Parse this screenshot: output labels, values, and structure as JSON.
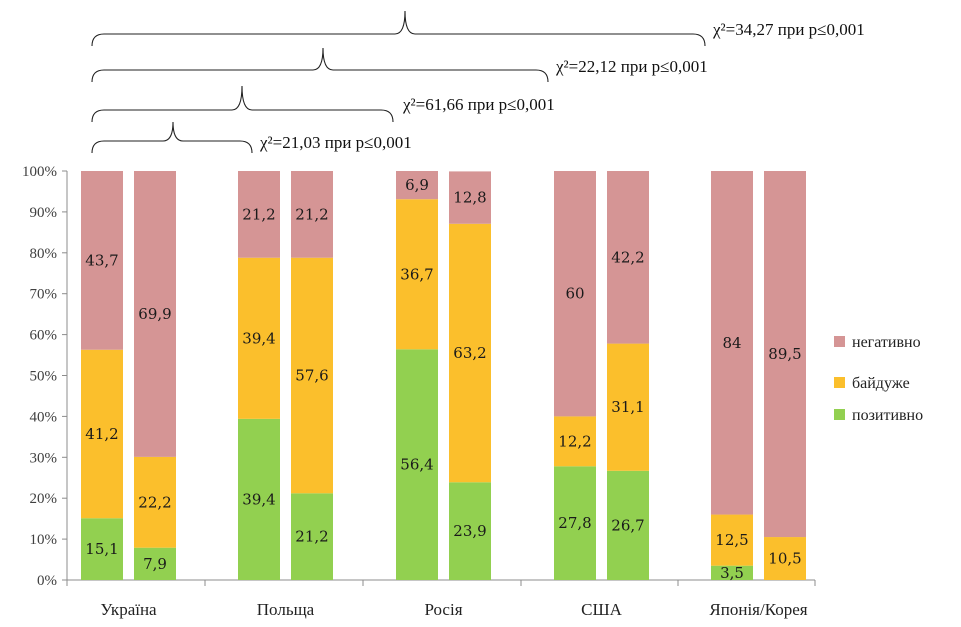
{
  "chart_data": {
    "type": "bar",
    "stacked": true,
    "percent": true,
    "ylim": [
      0,
      100
    ],
    "yticks": [
      "0%",
      "10%",
      "20%",
      "30%",
      "40%",
      "50%",
      "60%",
      "70%",
      "80%",
      "90%",
      "100%"
    ],
    "categories": [
      "Україна",
      "Польща",
      "Росія",
      "США",
      "Японія/Корея"
    ],
    "bars_per_category": 2,
    "series": [
      {
        "name": "позитивно",
        "color": "#92d050",
        "values": [
          [
            15.1,
            7.9
          ],
          [
            39.4,
            21.2
          ],
          [
            56.4,
            23.9
          ],
          [
            27.8,
            26.7
          ],
          [
            3.5,
            0
          ]
        ],
        "labels": [
          [
            "15,1",
            "7,9"
          ],
          [
            "39,4",
            "21,2"
          ],
          [
            "56,4",
            "23,9"
          ],
          [
            "27,8",
            "26,7"
          ],
          [
            "3,5",
            ""
          ]
        ]
      },
      {
        "name": "байдуже",
        "color": "#fbbf2c",
        "values": [
          [
            41.2,
            22.2
          ],
          [
            39.4,
            57.6
          ],
          [
            36.7,
            63.2
          ],
          [
            12.2,
            31.1
          ],
          [
            12.5,
            10.5
          ]
        ],
        "labels": [
          [
            "41,2",
            "22,2"
          ],
          [
            "39,4",
            "57,6"
          ],
          [
            "36,7",
            "63,2"
          ],
          [
            "12,2",
            "31,1"
          ],
          [
            "12,5",
            "10,5"
          ]
        ]
      },
      {
        "name": "негативно",
        "color": "#d59595",
        "values": [
          [
            43.7,
            69.9
          ],
          [
            21.2,
            21.2
          ],
          [
            6.9,
            12.8
          ],
          [
            60,
            42.2
          ],
          [
            84,
            89.5
          ]
        ],
        "labels": [
          [
            "43,7",
            "69,9"
          ],
          [
            "21,2",
            "21,2"
          ],
          [
            "6,9",
            "12,8"
          ],
          [
            "60",
            "42,2"
          ],
          [
            "84",
            "89,5"
          ]
        ]
      }
    ],
    "legend_order": [
      "негативно",
      "байдуже",
      "позитивно"
    ],
    "legend_position": "right",
    "grid": false,
    "annotations": [
      {
        "text": "χ²=34,27 при р≤0,001",
        "from": "Україна",
        "to": "США"
      },
      {
        "text": "χ²=22,12 при р≤0,001",
        "from": "Україна",
        "to": "Росія"
      },
      {
        "text": "χ²=61,66 при р≤0,001",
        "from": "Україна",
        "to": "Польща"
      },
      {
        "text": "χ²=21,03 при р≤0,001",
        "from": "Україна",
        "to": "Україна"
      }
    ]
  }
}
